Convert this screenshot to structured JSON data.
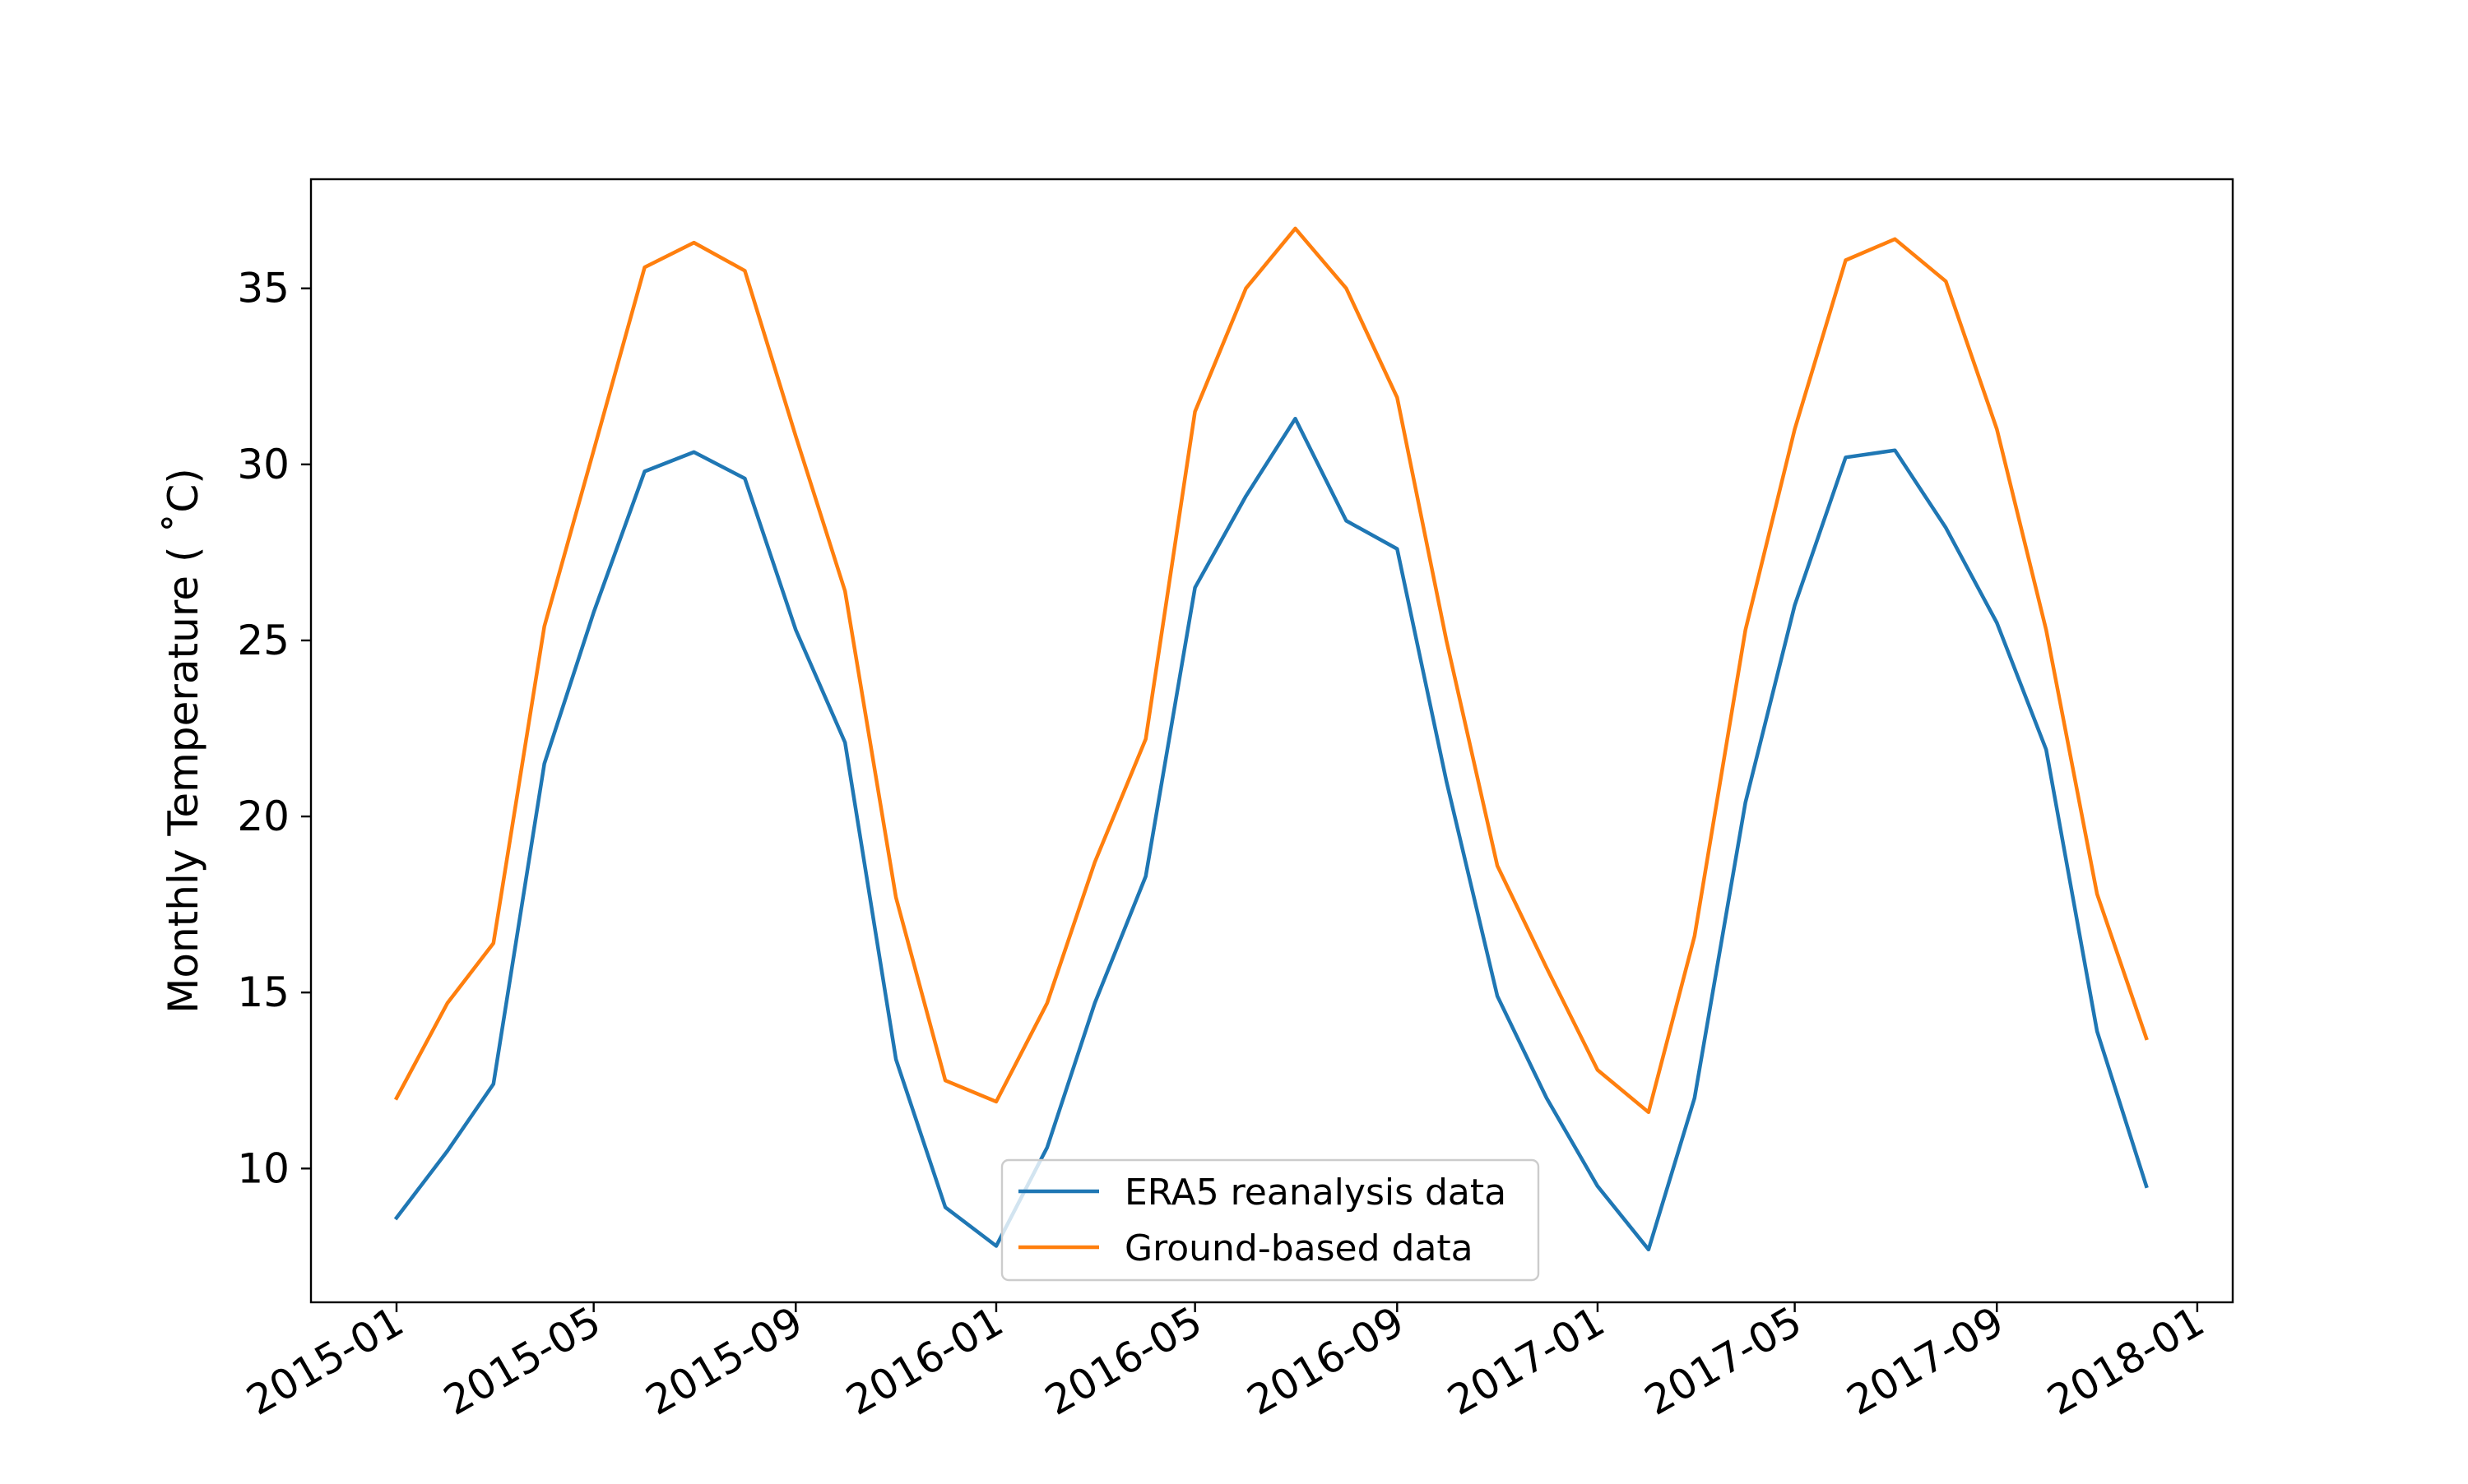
{
  "chart_data": {
    "type": "line",
    "title": "",
    "xlabel": "",
    "ylabel": "Monthly Temperature ( ˚C)",
    "x_ticks": [
      "2015-01",
      "2015-05",
      "2015-09",
      "2016-01",
      "2016-05",
      "2016-09",
      "2017-01",
      "2017-05",
      "2017-09",
      "2018-01"
    ],
    "y_ticks": [
      "10",
      "15",
      "20",
      "25",
      "30",
      "35"
    ],
    "ylim": [
      6.2,
      38.1
    ],
    "x": [
      "2015-01",
      "2015-02",
      "2015-03",
      "2015-04",
      "2015-05",
      "2015-06",
      "2015-07",
      "2015-08",
      "2015-09",
      "2015-10",
      "2015-11",
      "2015-12",
      "2016-01",
      "2016-02",
      "2016-03",
      "2016-04",
      "2016-05",
      "2016-06",
      "2016-07",
      "2016-08",
      "2016-09",
      "2016-10",
      "2016-11",
      "2016-12",
      "2017-01",
      "2017-02",
      "2017-03",
      "2017-04",
      "2017-05",
      "2017-06",
      "2017-07",
      "2017-08",
      "2017-09",
      "2017-10",
      "2017-11",
      "2017-12"
    ],
    "series": [
      {
        "name": "ERA5 reanalysis data",
        "color": "#1f77b4",
        "values": [
          8.6,
          10.5,
          12.4,
          21.5,
          25.8,
          29.8,
          30.35,
          29.6,
          25.3,
          22.1,
          13.1,
          8.9,
          7.8,
          10.6,
          14.7,
          18.3,
          26.5,
          29.1,
          31.3,
          28.4,
          27.6,
          21.0,
          14.9,
          12.0,
          9.5,
          7.7,
          12.0,
          20.4,
          26.0,
          30.2,
          30.4,
          28.2,
          25.5,
          21.9,
          13.9,
          9.5
        ]
      },
      {
        "name": "Ground-based data",
        "color": "#ff7f0e",
        "values": [
          12.0,
          14.7,
          16.4,
          25.4,
          30.4,
          35.6,
          36.3,
          35.5,
          30.8,
          26.4,
          17.7,
          12.5,
          11.9,
          14.7,
          18.7,
          22.2,
          31.5,
          35.0,
          36.7,
          35.0,
          31.9,
          25.0,
          18.6,
          15.7,
          12.8,
          11.6,
          16.6,
          25.3,
          31.0,
          35.8,
          36.4,
          35.2,
          31.0,
          25.3,
          17.8,
          13.7
        ]
      }
    ],
    "grid": false,
    "legend": "lower center"
  }
}
